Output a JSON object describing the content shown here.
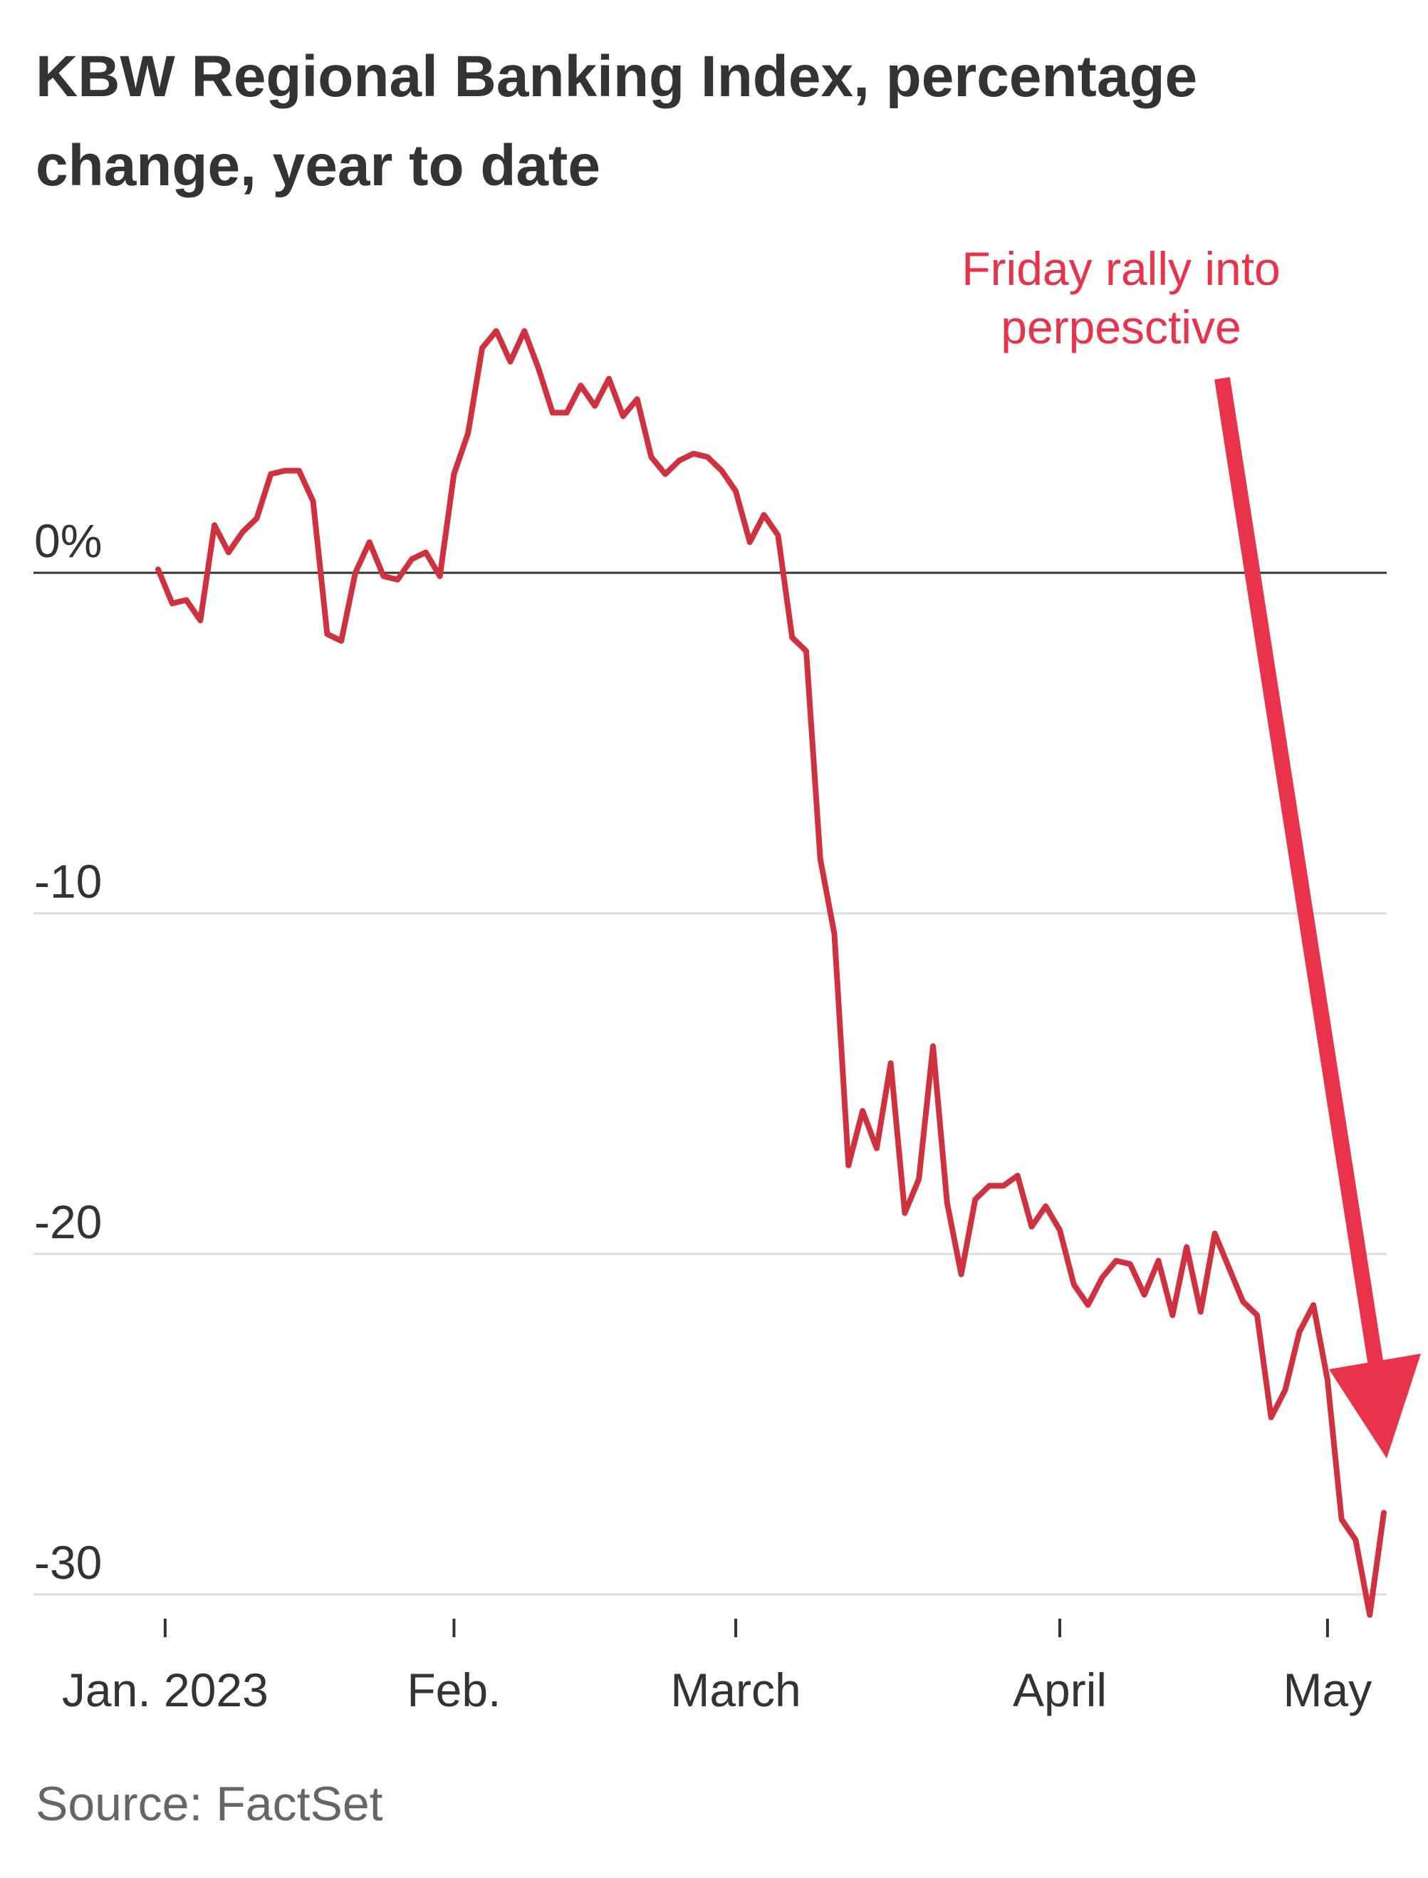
{
  "chart_data": {
    "type": "line",
    "title": [
      "KBW Regional Banking Index, percentage",
      "change, year to date"
    ],
    "annotation": [
      "Friday rally into",
      "perpesctive"
    ],
    "source": "Source: FactSet",
    "series": [
      {
        "name": "KBW Regional Banking Index",
        "color": "#d0313f",
        "values": [
          0.1,
          -0.9,
          -0.8,
          -1.4,
          1.4,
          0.6,
          1.2,
          1.6,
          2.9,
          3.0,
          3.0,
          2.1,
          -1.8,
          -2.0,
          0,
          0.9,
          -0.1,
          -0.2,
          0.4,
          0.6,
          -0.1,
          2.9,
          4.1,
          6.6,
          7.1,
          6.2,
          7.1,
          6.0,
          4.7,
          4.7,
          5.5,
          4.9,
          5.7,
          4.6,
          5.1,
          3.4,
          2.9,
          3.3,
          3.5,
          3.4,
          3.0,
          2.4,
          0.9,
          1.7,
          1.1,
          -1.9,
          -2.3,
          -8.4,
          -10.6,
          -17.4,
          -15.8,
          -16.9,
          -14.4,
          -18.8,
          -17.8,
          -13.9,
          -18.5,
          -20.6,
          -18.4,
          -18.0,
          -18.0,
          -17.7,
          -19.2,
          -18.6,
          -19.3,
          -20.9,
          -21.5,
          -20.7,
          -20.2,
          -20.3,
          -21.2,
          -20.2,
          -21.8,
          -19.8,
          -21.7,
          -19.4,
          -20.4,
          -21.4,
          -21.8,
          -24.8,
          -24.0,
          -22.3,
          -21.5,
          -23.7,
          -27.8,
          -28.4,
          -30.6,
          -27.6
        ]
      }
    ],
    "xlim": [
      0,
      87
    ],
    "xticks": [
      {
        "value": 0.5,
        "label": "Jan. 2023"
      },
      {
        "value": 21,
        "label": "Feb."
      },
      {
        "value": 41,
        "label": "March"
      },
      {
        "value": 64,
        "label": "April"
      },
      {
        "value": 83,
        "label": "May"
      }
    ],
    "ylim": [
      -31,
      8
    ],
    "yticks": [
      {
        "value": 0,
        "label": "0%"
      },
      -10,
      -20,
      -30
    ],
    "grid": true,
    "annotation_color": "#e8334a"
  }
}
